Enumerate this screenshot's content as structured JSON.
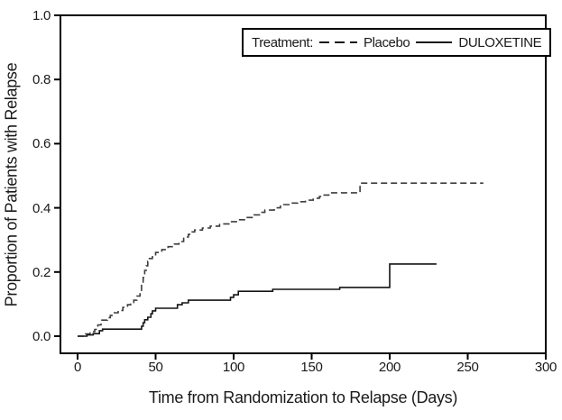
{
  "chart_data": {
    "type": "line",
    "subtype": "kaplan-meier-step",
    "title": "",
    "xlabel": "Time from Randomization to Relapse (Days)",
    "ylabel": "Proportion of Patients with Relapse",
    "xlim": [
      0,
      300
    ],
    "ylim": [
      0,
      1.0
    ],
    "x_ticks": [
      0,
      50,
      100,
      150,
      200,
      250,
      300
    ],
    "y_ticks": [
      "0.0",
      "0.2",
      "0.4",
      "0.6",
      "0.8",
      "1.0"
    ],
    "grid": false,
    "legend_position": "top-right-inside-box",
    "legend": {
      "prefix": "Treatment:",
      "entries": [
        {
          "label": "Placebo",
          "style": "dashed"
        },
        {
          "label": "DULOXETINE",
          "style": "solid"
        }
      ]
    },
    "colors": {
      "frame": "#000000",
      "placebo_line": "#3d3d3d",
      "duloxetine_line": "#141414",
      "text": "#1a1a1a",
      "background": "#ffffff"
    },
    "series": [
      {
        "name": "Placebo",
        "style": "dashed",
        "color": "#3d3d3d",
        "end_x": 260,
        "points": [
          [
            0,
            0.0
          ],
          [
            5,
            0.007
          ],
          [
            8,
            0.014
          ],
          [
            11,
            0.021
          ],
          [
            13,
            0.035
          ],
          [
            15,
            0.05
          ],
          [
            19,
            0.058
          ],
          [
            21,
            0.065
          ],
          [
            23,
            0.073
          ],
          [
            26,
            0.08
          ],
          [
            29,
            0.09
          ],
          [
            32,
            0.098
          ],
          [
            34,
            0.105
          ],
          [
            36,
            0.112
          ],
          [
            38,
            0.125
          ],
          [
            40,
            0.14
          ],
          [
            41,
            0.163
          ],
          [
            42,
            0.183
          ],
          [
            43,
            0.205
          ],
          [
            44,
            0.219
          ],
          [
            45,
            0.233
          ],
          [
            46,
            0.242
          ],
          [
            48,
            0.251
          ],
          [
            50,
            0.261
          ],
          [
            54,
            0.27
          ],
          [
            58,
            0.279
          ],
          [
            62,
            0.287
          ],
          [
            65,
            0.295
          ],
          [
            68,
            0.309
          ],
          [
            71,
            0.317
          ],
          [
            73,
            0.325
          ],
          [
            75,
            0.331
          ],
          [
            80,
            0.337
          ],
          [
            85,
            0.343
          ],
          [
            91,
            0.35
          ],
          [
            97,
            0.357
          ],
          [
            103,
            0.363
          ],
          [
            108,
            0.37
          ],
          [
            113,
            0.378
          ],
          [
            117,
            0.386
          ],
          [
            120,
            0.393
          ],
          [
            126,
            0.4
          ],
          [
            130,
            0.41
          ],
          [
            136,
            0.415
          ],
          [
            141,
            0.419
          ],
          [
            146,
            0.424
          ],
          [
            151,
            0.43
          ],
          [
            155,
            0.435
          ],
          [
            158,
            0.44
          ],
          [
            161,
            0.447
          ],
          [
            181,
            0.477
          ]
        ]
      },
      {
        "name": "DULOXETINE",
        "style": "solid",
        "color": "#141414",
        "end_x": 230,
        "points": [
          [
            0,
            0.0
          ],
          [
            6,
            0.004
          ],
          [
            10,
            0.008
          ],
          [
            14,
            0.017
          ],
          [
            16,
            0.022
          ],
          [
            41,
            0.031
          ],
          [
            42,
            0.042
          ],
          [
            43,
            0.051
          ],
          [
            45,
            0.059
          ],
          [
            47,
            0.07
          ],
          [
            48,
            0.079
          ],
          [
            50,
            0.087
          ],
          [
            64,
            0.098
          ],
          [
            67,
            0.104
          ],
          [
            71,
            0.112
          ],
          [
            98,
            0.121
          ],
          [
            100,
            0.129
          ],
          [
            103,
            0.14
          ],
          [
            125,
            0.146
          ],
          [
            168,
            0.152
          ],
          [
            200,
            0.225
          ]
        ]
      }
    ]
  }
}
